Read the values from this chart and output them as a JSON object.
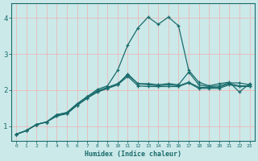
{
  "title": "",
  "xlabel": "Humidex (Indice chaleur)",
  "ylabel": "",
  "background_color": "#cce9e9",
  "grid_color": "#e8b8b8",
  "line_color": "#1a6b6b",
  "xlim": [
    -0.5,
    23.5
  ],
  "ylim": [
    0.6,
    4.4
  ],
  "xticks": [
    0,
    1,
    2,
    3,
    4,
    5,
    6,
    7,
    8,
    9,
    10,
    11,
    12,
    13,
    14,
    15,
    16,
    17,
    18,
    19,
    20,
    21,
    22,
    23
  ],
  "yticks": [
    1,
    2,
    3,
    4
  ],
  "series": [
    [
      0.78,
      0.88,
      1.05,
      1.12,
      1.28,
      1.35,
      1.58,
      1.78,
      1.95,
      2.05,
      2.15,
      2.45,
      2.18,
      2.18,
      2.15,
      2.18,
      2.15,
      2.5,
      2.15,
      2.1,
      2.12,
      2.2,
      2.2,
      2.15
    ],
    [
      0.78,
      0.88,
      1.05,
      1.12,
      1.32,
      1.38,
      1.62,
      1.82,
      2.02,
      2.12,
      2.55,
      3.25,
      3.72,
      4.02,
      3.82,
      4.02,
      3.78,
      2.55,
      2.22,
      2.12,
      2.18,
      2.22,
      1.95,
      2.18
    ],
    [
      0.78,
      0.88,
      1.05,
      1.12,
      1.32,
      1.38,
      1.62,
      1.82,
      1.98,
      2.08,
      2.18,
      2.42,
      2.18,
      2.15,
      2.12,
      2.15,
      2.12,
      2.22,
      2.08,
      2.08,
      2.08,
      2.18,
      2.12,
      2.12
    ],
    [
      0.78,
      0.88,
      1.05,
      1.12,
      1.32,
      1.35,
      1.58,
      1.78,
      1.95,
      2.05,
      2.15,
      2.38,
      2.12,
      2.1,
      2.1,
      2.1,
      2.1,
      2.2,
      2.05,
      2.05,
      2.05,
      2.15,
      2.1,
      2.1
    ]
  ]
}
